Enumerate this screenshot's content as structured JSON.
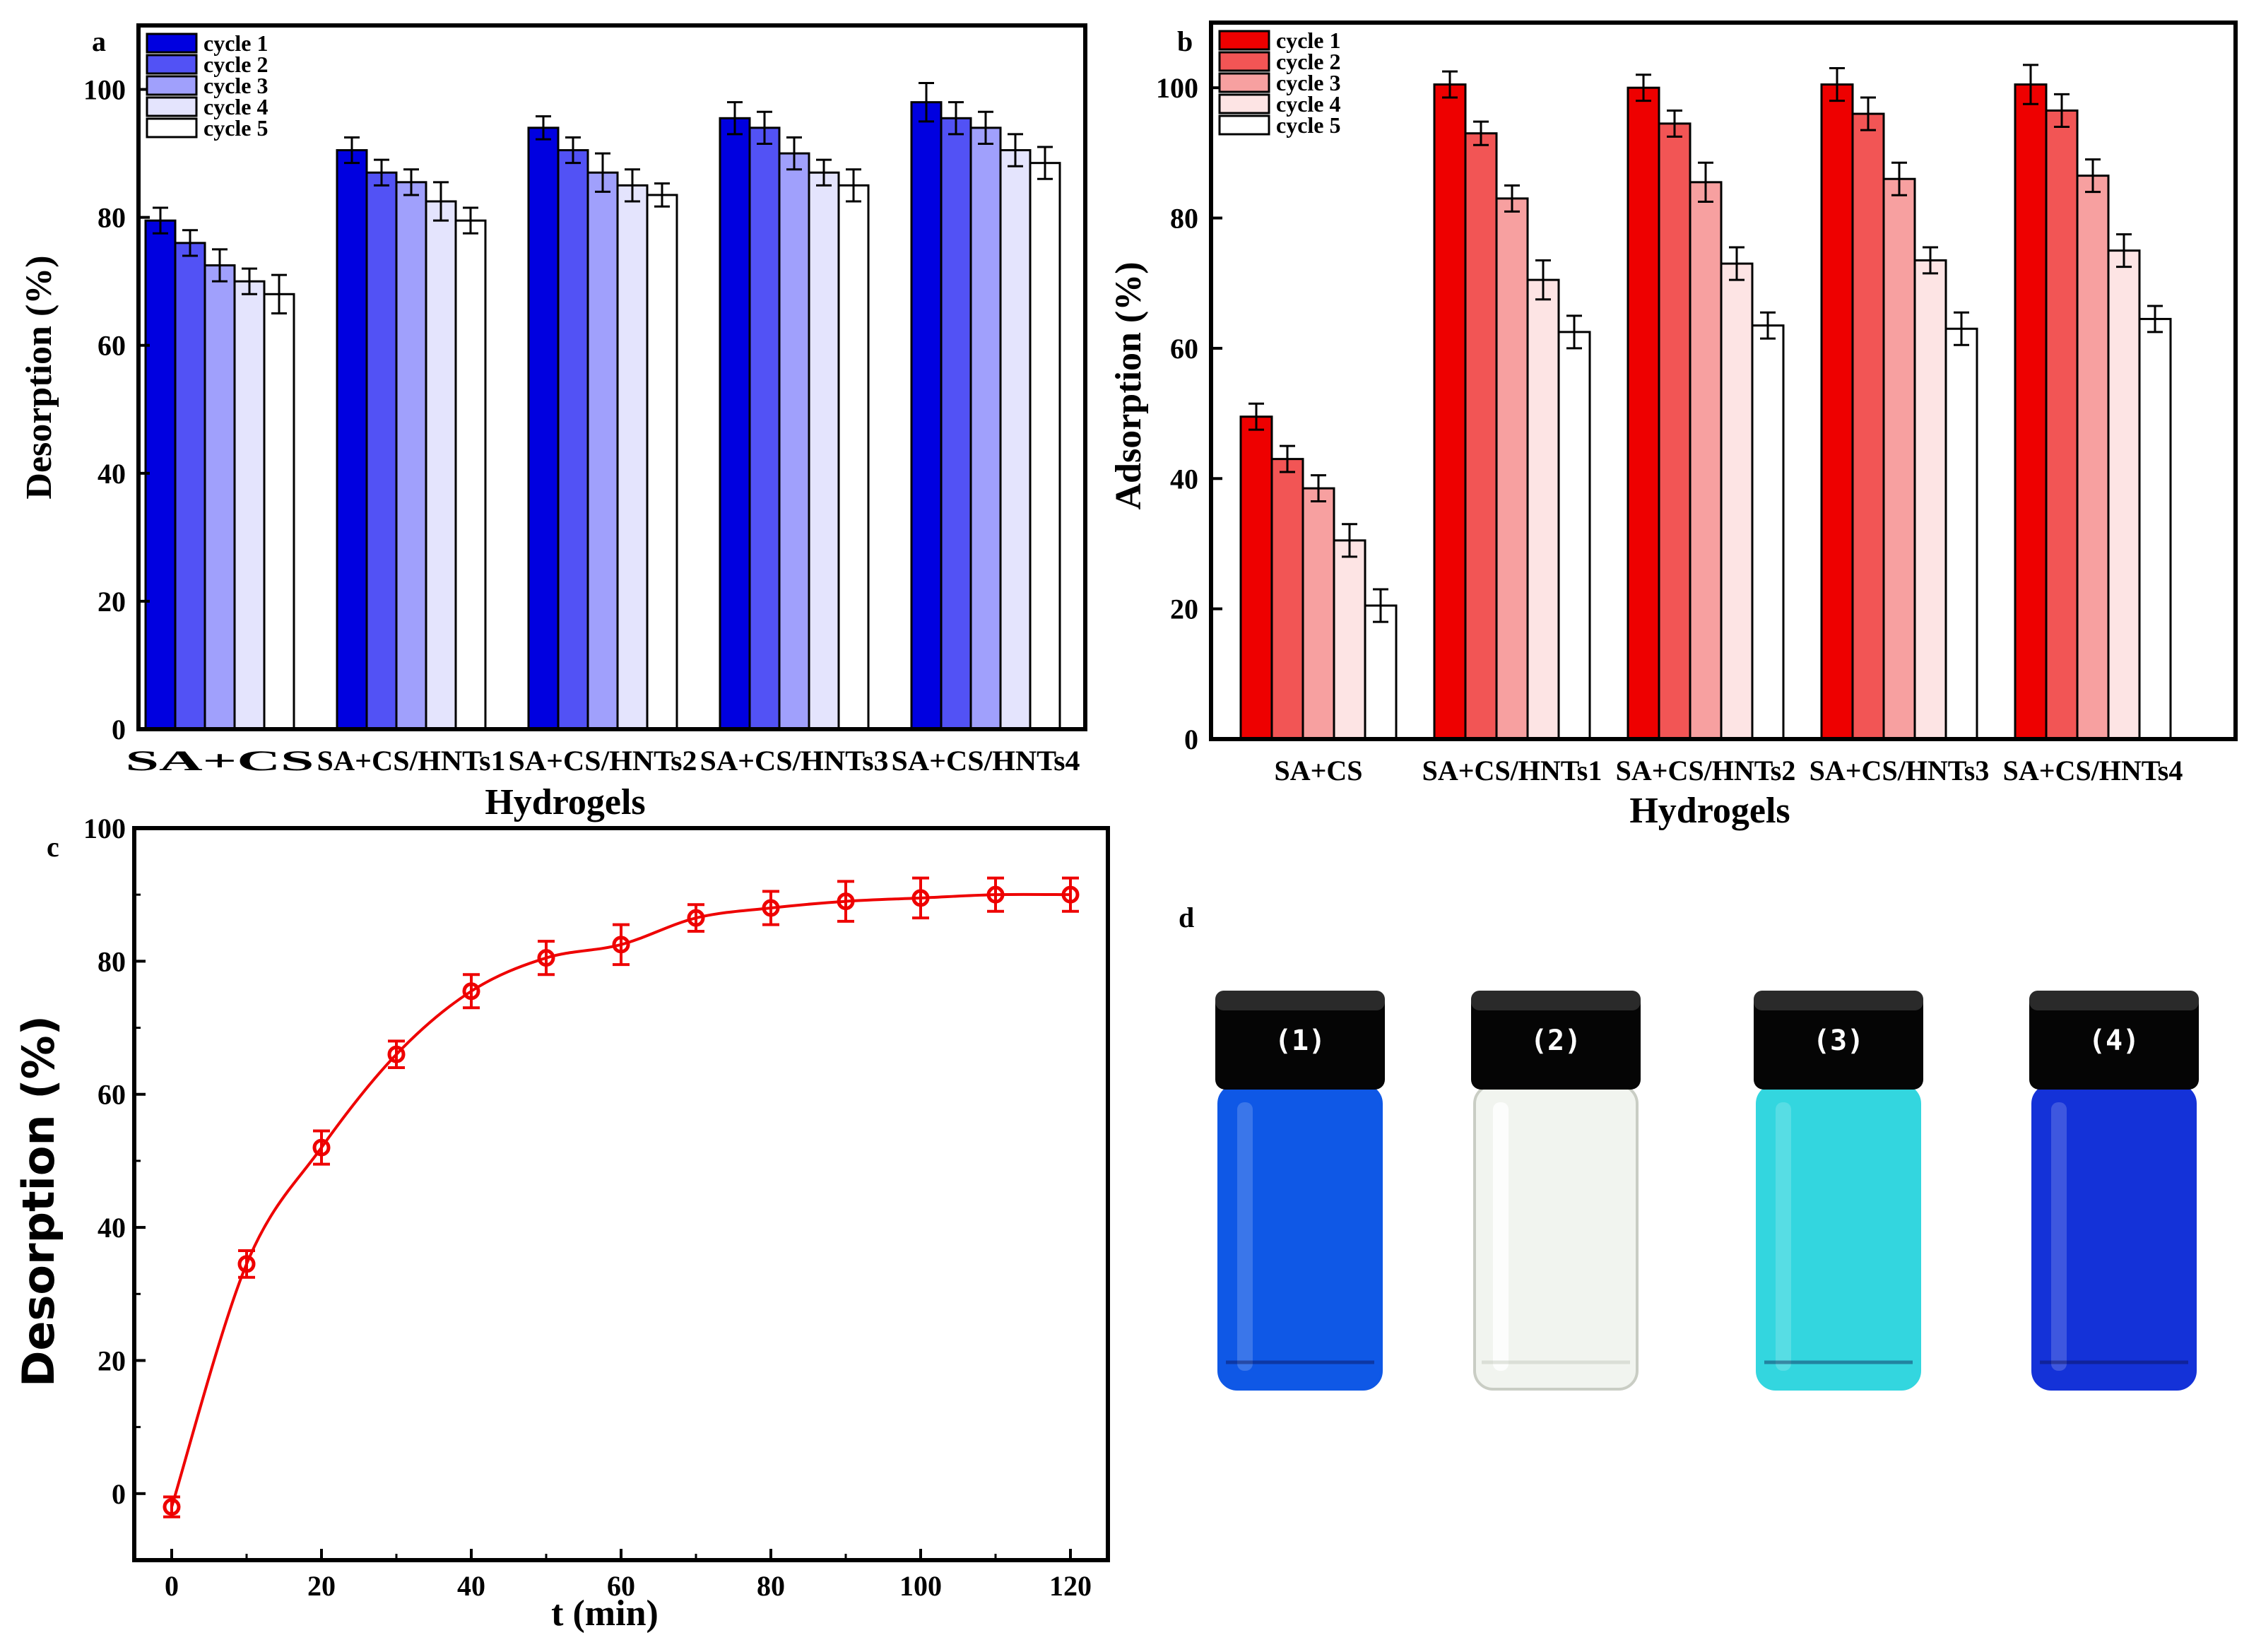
{
  "chart_data": [
    {
      "id": "a",
      "type": "bar",
      "panel_label": "a",
      "title": "",
      "xlabel": "Hydrogels",
      "ylabel": "Desorption (%)",
      "ylim": [
        0,
        110
      ],
      "yticks": [
        0,
        20,
        40,
        60,
        80,
        100
      ],
      "categories": [
        "SA+CS",
        "SA+CS/HNTs1",
        "SA+CS/HNTs2",
        "SA+CS/HNTs3",
        "SA+CS/HNTs4"
      ],
      "series": [
        {
          "name": "cycle 1",
          "color": "#0000e0",
          "values": [
            79.5,
            90.5,
            94,
            95.5,
            98
          ],
          "errors": [
            2,
            2,
            1.8,
            2.5,
            3
          ]
        },
        {
          "name": "cycle 2",
          "color": "#5252f5",
          "values": [
            76,
            87,
            90.5,
            94,
            95.5
          ],
          "errors": [
            2,
            2,
            2,
            2.5,
            2.5
          ]
        },
        {
          "name": "cycle 3",
          "color": "#a0a0fc",
          "values": [
            72.5,
            85.5,
            87,
            90,
            94
          ],
          "errors": [
            2.5,
            2,
            3,
            2.5,
            2.5
          ]
        },
        {
          "name": "cycle 4",
          "color": "#e4e4fd",
          "values": [
            70,
            82.5,
            85,
            87,
            90.5
          ],
          "errors": [
            2,
            3,
            2.5,
            2,
            2.5
          ]
        },
        {
          "name": "cycle 5",
          "color": "#ffffff",
          "values": [
            68,
            79.5,
            83.5,
            85,
            88.5
          ],
          "errors": [
            3,
            2,
            1.8,
            2.5,
            2.5
          ]
        }
      ],
      "legend": "top-left"
    },
    {
      "id": "b",
      "type": "bar",
      "panel_label": "b",
      "title": "",
      "xlabel": "Hydrogels",
      "ylabel": "Adsorption (%)",
      "ylim": [
        0,
        110
      ],
      "yticks": [
        0,
        20,
        40,
        60,
        80,
        100
      ],
      "categories": [
        "SA+CS",
        "SA+CS/HNTs1",
        "SA+CS/HNTs2",
        "SA+CS/HNTs3",
        "SA+CS/HNTs4"
      ],
      "series": [
        {
          "name": "cycle 1",
          "color": "#ee0000",
          "values": [
            49.5,
            100.5,
            100,
            100.5,
            100.5
          ],
          "errors": [
            2,
            2,
            2,
            2.5,
            3
          ]
        },
        {
          "name": "cycle 2",
          "color": "#f25555",
          "values": [
            43,
            93,
            94.5,
            96,
            96.5
          ],
          "errors": [
            2,
            1.8,
            2,
            2.5,
            2.5
          ]
        },
        {
          "name": "cycle 3",
          "color": "#f7a0a0",
          "values": [
            38.5,
            83,
            85.5,
            86,
            86.5
          ],
          "errors": [
            2,
            2,
            3,
            2.5,
            2.5
          ]
        },
        {
          "name": "cycle 4",
          "color": "#fde4e4",
          "values": [
            30.5,
            70.5,
            73,
            73.5,
            75
          ],
          "errors": [
            2.5,
            3,
            2.5,
            2,
            2.5
          ]
        },
        {
          "name": "cycle 5",
          "color": "#ffffff",
          "values": [
            20.5,
            62.5,
            63.5,
            63,
            64.5
          ],
          "errors": [
            2.5,
            2.5,
            2,
            2.5,
            2
          ]
        }
      ],
      "legend": "top-left"
    },
    {
      "id": "c",
      "type": "line",
      "panel_label": "c",
      "title": "",
      "xlabel": "t (min)",
      "ylabel": "Desorption (%)",
      "xlim": [
        -5,
        125
      ],
      "ylim": [
        -10,
        100
      ],
      "xticks": [
        0,
        20,
        40,
        60,
        80,
        100,
        120
      ],
      "yticks": [
        0,
        20,
        40,
        60,
        80,
        100
      ],
      "series": [
        {
          "name": "Desorption",
          "color": "#ee0000",
          "x": [
            0,
            10,
            20,
            30,
            40,
            50,
            60,
            70,
            80,
            90,
            100,
            110,
            120
          ],
          "y": [
            -2,
            34.5,
            52,
            66,
            75.5,
            80.5,
            82.5,
            86.5,
            88,
            89,
            89.5,
            90,
            90
          ],
          "errors": [
            1.5,
            2,
            2.5,
            2,
            2.5,
            2.5,
            3,
            2,
            2.5,
            3,
            3,
            2.5,
            2.5
          ]
        }
      ],
      "legend": "none"
    }
  ],
  "panel_d": {
    "label": "d",
    "vials": [
      {
        "label": "(1)",
        "color": "#0f58e6",
        "name": "vial-1"
      },
      {
        "label": "(2)",
        "color": "#f1f4ef",
        "name": "vial-2"
      },
      {
        "label": "(3)",
        "color": "#33d6df",
        "name": "vial-3"
      },
      {
        "label": "(4)",
        "color": "#1432d8",
        "name": "vial-4"
      }
    ]
  }
}
